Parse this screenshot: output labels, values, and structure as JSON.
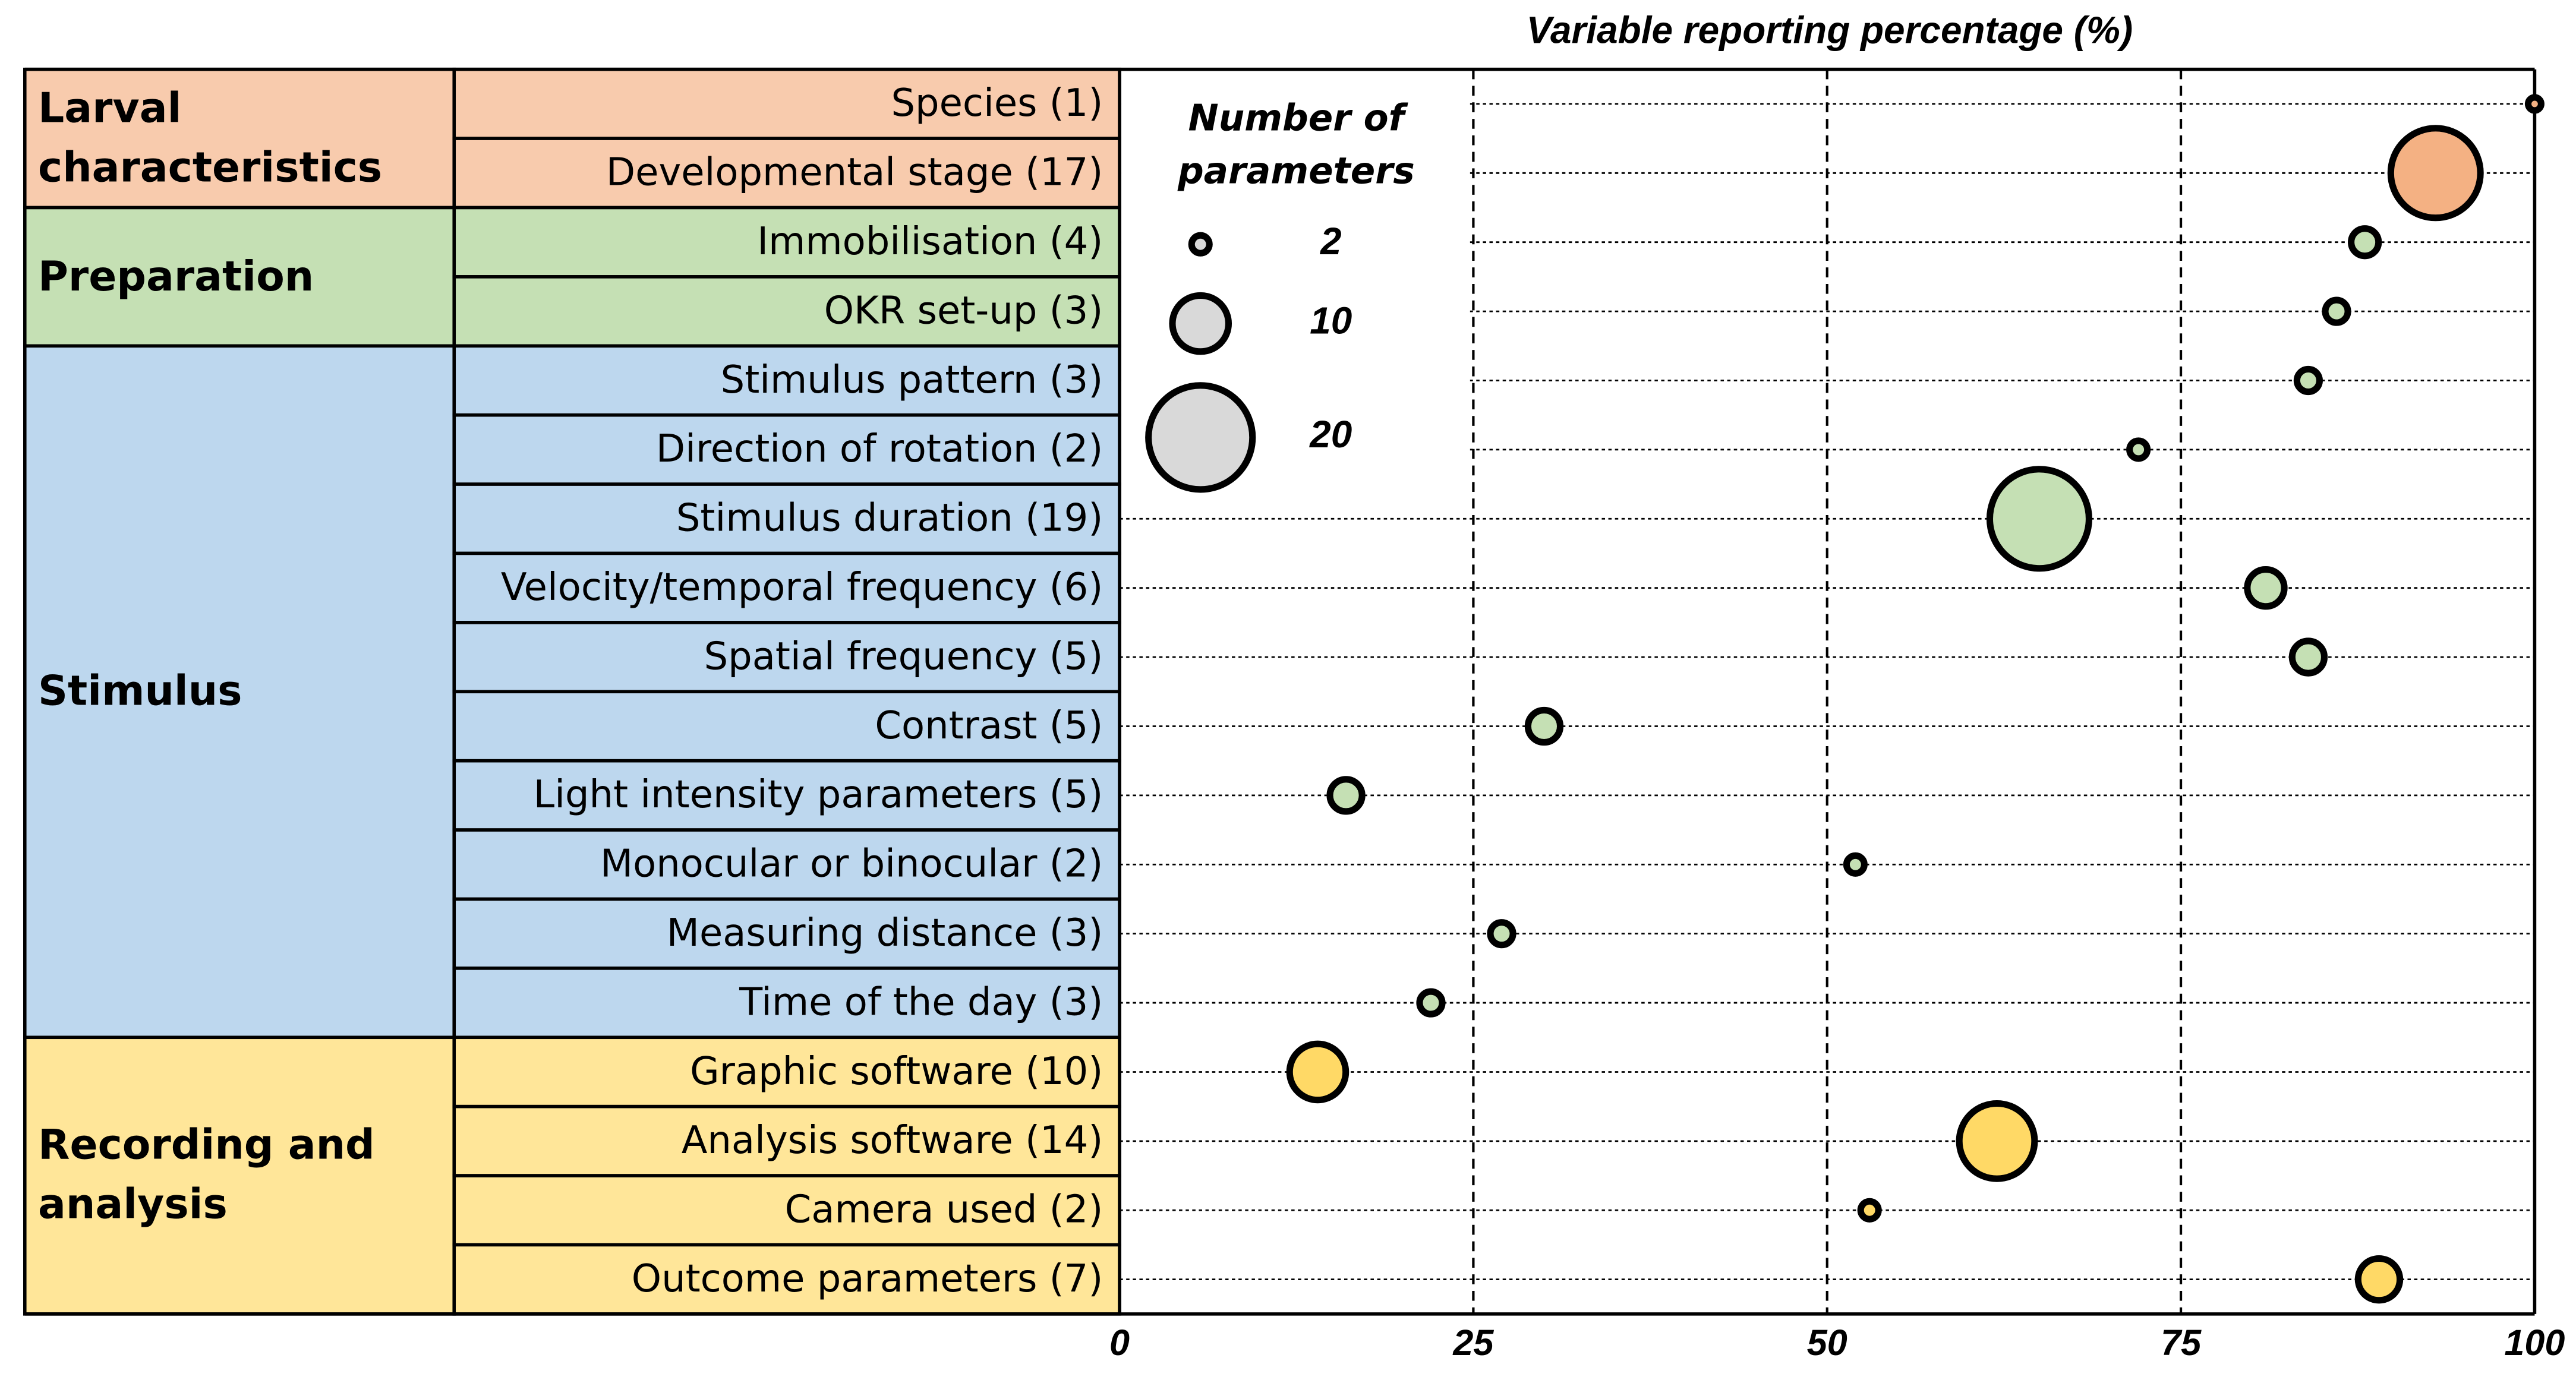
{
  "chart_data": {
    "type": "bubble",
    "x_title": "Variable reporting percentage (%)",
    "xlim": [
      0,
      100
    ],
    "xticks": [
      0,
      25,
      50,
      75,
      100
    ],
    "size_legend": {
      "title": "Number of parameters",
      "sizes": [
        2,
        10,
        20
      ],
      "color": "#d9d9d9"
    },
    "series": [
      {
        "name": "Larval characteristics",
        "color": "#f8cbad",
        "categories": [
          "Species (1)",
          "Developmental stage (17)"
        ],
        "values": [
          100,
          93
        ],
        "sizes": [
          1,
          17
        ],
        "point_colors": [
          "#f4b183",
          "#f4b183"
        ]
      },
      {
        "name": "Preparation",
        "color": "#c5e0b4",
        "categories": [
          "Immobilisation (4)",
          "OKR set-up (3)"
        ],
        "values": [
          88,
          86
        ],
        "sizes": [
          4,
          3
        ],
        "point_colors": [
          "#c5e0b4",
          "#c5e0b4"
        ]
      },
      {
        "name": "Stimulus",
        "color": "#bdd7ee",
        "categories": [
          "Stimulus pattern (3)",
          "Direction of rotation (2)",
          "Stimulus duration (19)",
          "Velocity/temporal frequency (6)",
          "Spatial frequency (5)",
          "Contrast (5)",
          "Light intensity parameters (5)",
          "Monocular or binocular (2)",
          "Measuring distance (3)",
          "Time of the day (3)"
        ],
        "values": [
          84,
          72,
          65,
          81,
          84,
          30,
          16,
          52,
          27,
          22
        ],
        "sizes": [
          3,
          2,
          19,
          6,
          5,
          5,
          5,
          2,
          3,
          3
        ],
        "point_colors": [
          "#c5e0b4",
          "#c5e0b4",
          "#c5e0b4",
          "#c5e0b4",
          "#c5e0b4",
          "#c5e0b4",
          "#c5e0b4",
          "#c5e0b4",
          "#c5e0b4",
          "#c5e0b4"
        ]
      },
      {
        "name": "Recording and analysis",
        "color": "#ffe699",
        "categories": [
          "Graphic software (10)",
          "Analysis software (14)",
          "Camera used (2)",
          "Outcome parameters (7)"
        ],
        "values": [
          14,
          62,
          53,
          89
        ],
        "sizes": [
          10,
          14,
          2,
          7
        ],
        "point_colors": [
          "#ffd966",
          "#ffd966",
          "#ffd966",
          "#ffd966"
        ]
      }
    ]
  }
}
